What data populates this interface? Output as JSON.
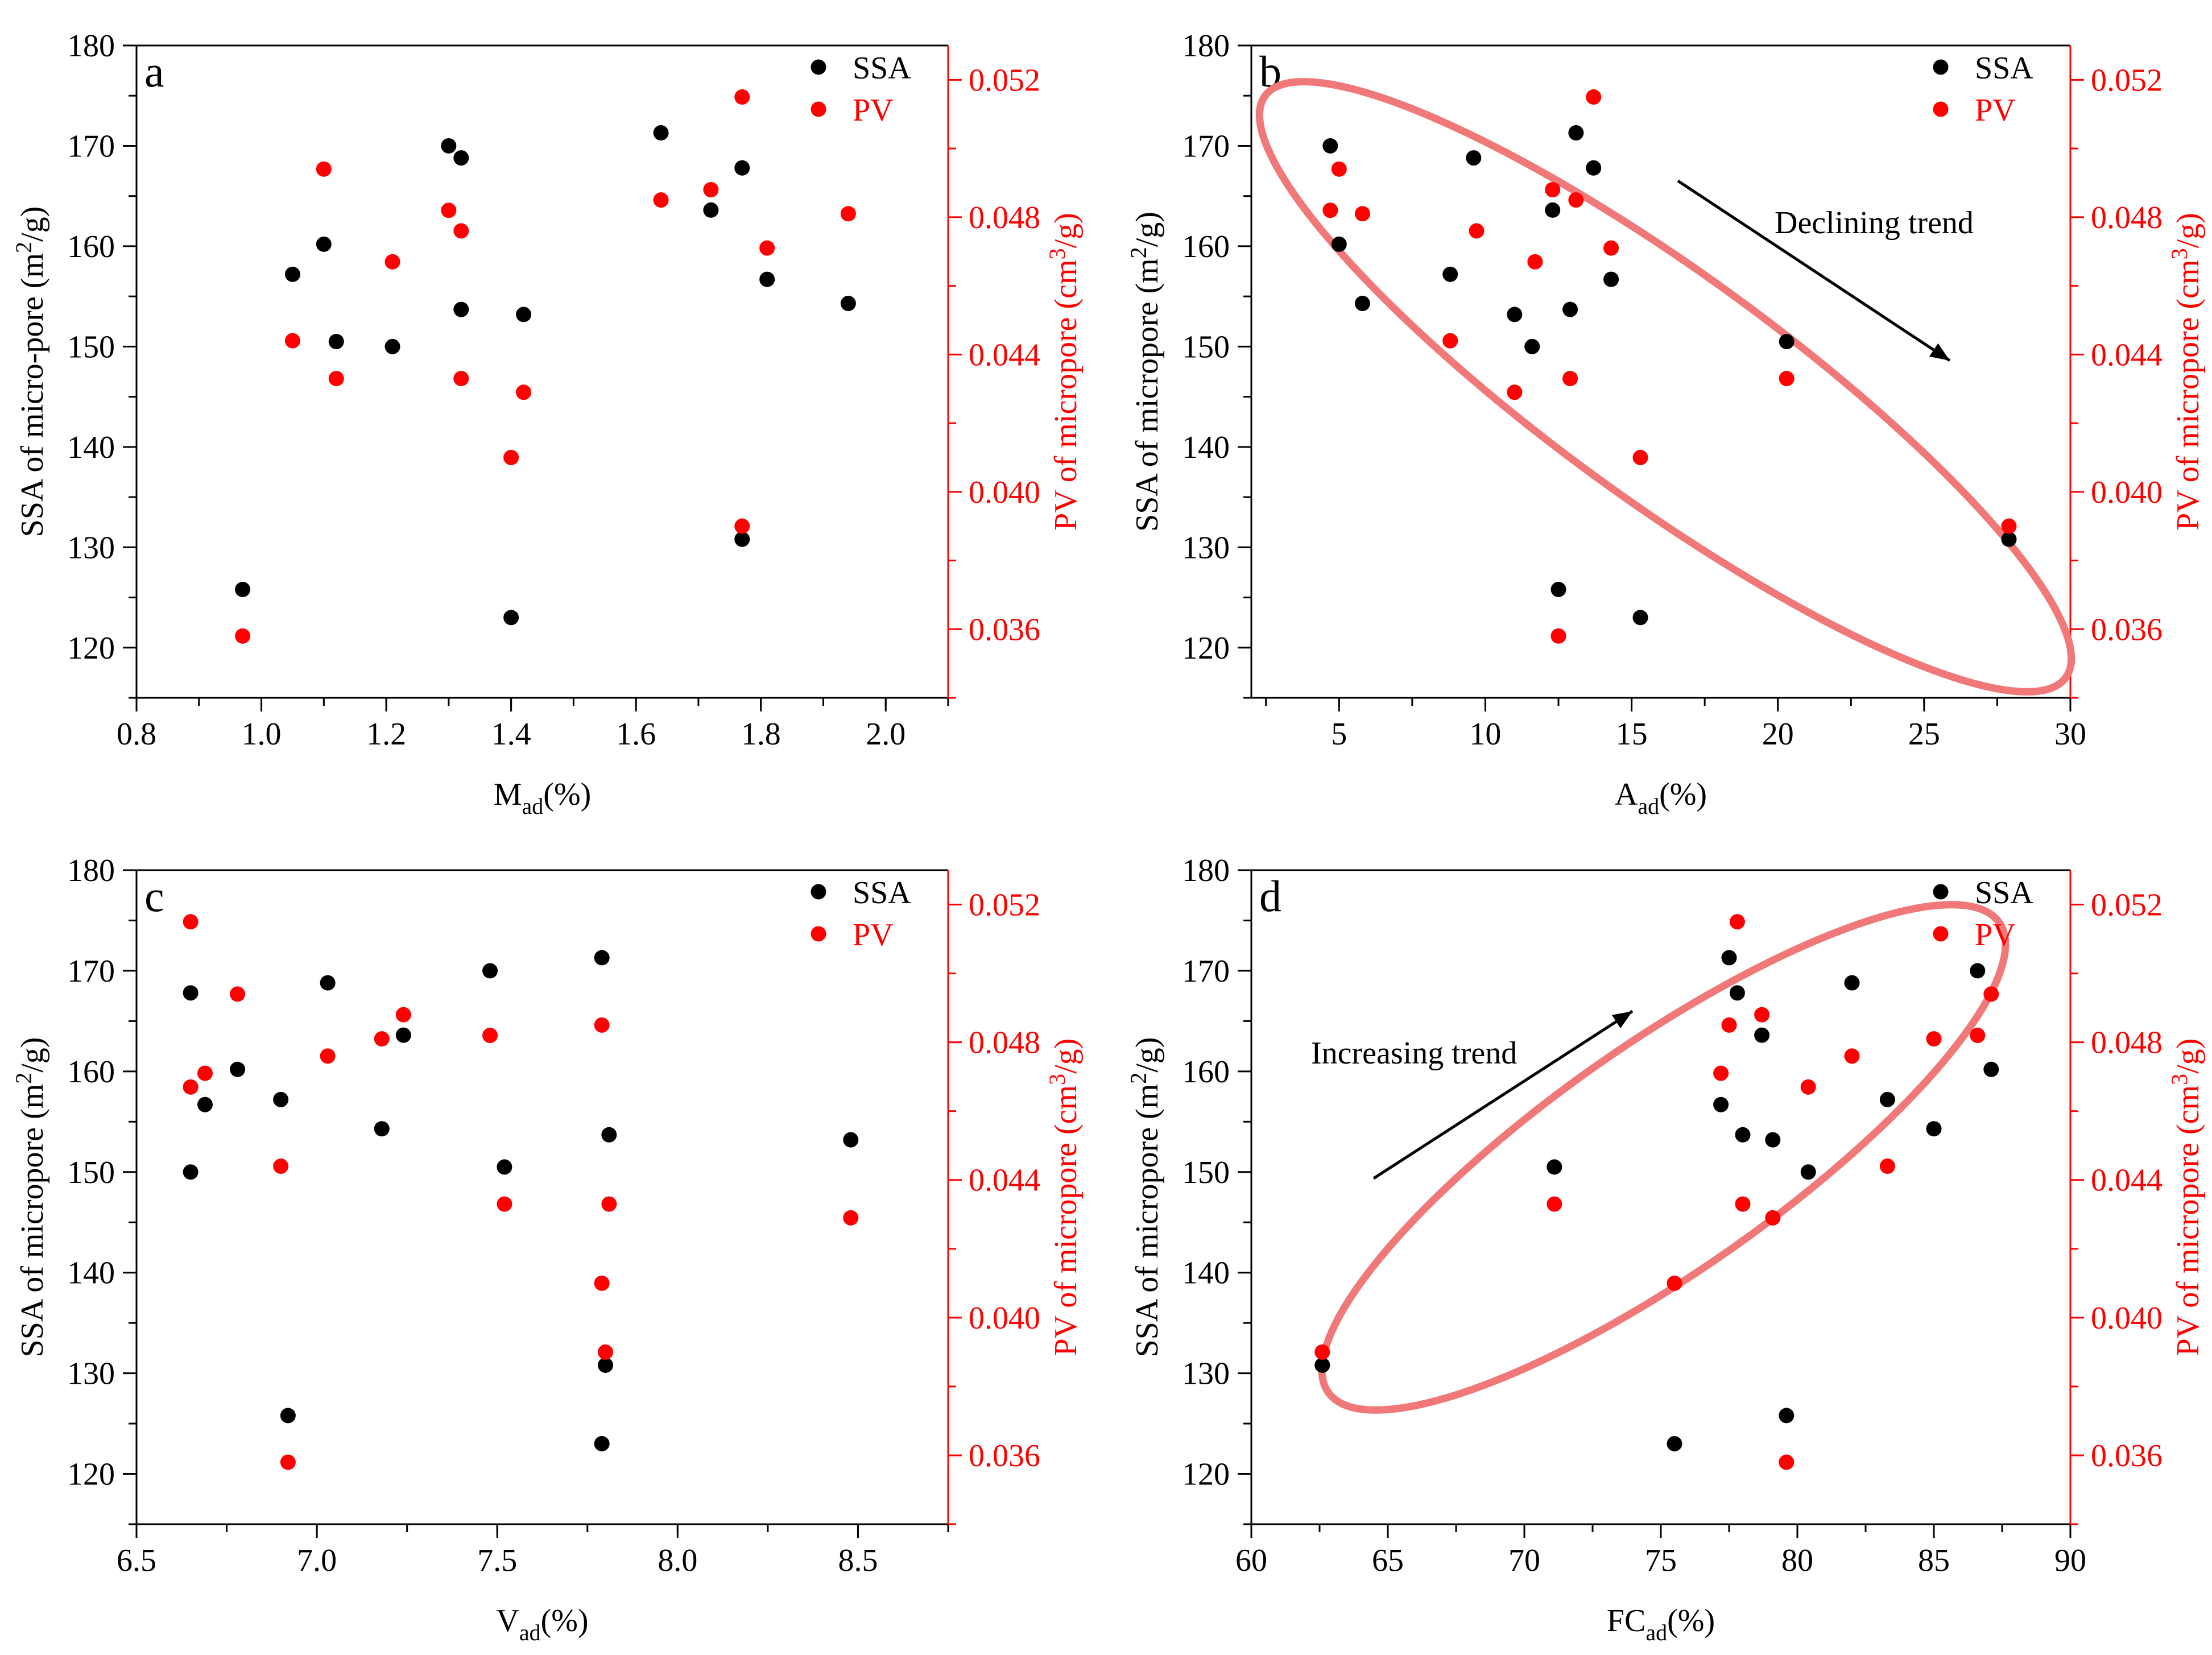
{
  "colors": {
    "ssa": "#000000",
    "pv": "#ff0000",
    "ellipse": "#f07878",
    "axis_left": "#000000",
    "axis_right": "#ff0000"
  },
  "chart_data": [
    {
      "panel_label": "a",
      "type": "scatter",
      "xlabel_main": "M",
      "xlabel_sub": "ad",
      "xlabel_tail": "(%)",
      "ylabel_left": "SSA of micro-pore (m",
      "ylabel_left_sup": "2",
      "ylabel_left_tail": "/g)",
      "ylabel_right": "PV of micropore (cm",
      "ylabel_right_sup": "3",
      "ylabel_right_tail": "/g)",
      "xlim": [
        0.8,
        2.1
      ],
      "ylim_left": [
        115,
        180
      ],
      "ylim_right": [
        0.034,
        0.053
      ],
      "xticks": [
        "0.8",
        "1.0",
        "1.2",
        "1.4",
        "1.6",
        "1.8",
        "2.0"
      ],
      "yticks_left": [
        "120",
        "130",
        "140",
        "150",
        "160",
        "170",
        "180"
      ],
      "yticks_right": [
        "0.036",
        "0.040",
        "0.044",
        "0.048",
        "0.052"
      ],
      "legend": [
        "SSA",
        "PV"
      ],
      "series": [
        {
          "name": "SSA",
          "axis": "left",
          "x": [
            0.97,
            1.05,
            1.1,
            1.12,
            1.21,
            1.3,
            1.32,
            1.32,
            1.4,
            1.42,
            1.64,
            1.72,
            1.77,
            1.77,
            1.81,
            1.94
          ],
          "y": [
            125.8,
            157.2,
            160.2,
            150.5,
            150.0,
            170.0,
            168.8,
            153.7,
            123.0,
            153.2,
            171.3,
            163.6,
            167.8,
            130.8,
            156.7,
            154.3
          ]
        },
        {
          "name": "PV",
          "axis": "right",
          "x": [
            0.97,
            1.05,
            1.1,
            1.12,
            1.21,
            1.3,
            1.32,
            1.32,
            1.4,
            1.42,
            1.64,
            1.72,
            1.77,
            1.77,
            1.81,
            1.94
          ],
          "y": [
            0.0358,
            0.0444,
            0.0494,
            0.0433,
            0.0467,
            0.0482,
            0.0476,
            0.0433,
            0.041,
            0.0429,
            0.0485,
            0.0488,
            0.0515,
            0.039,
            0.0471,
            0.0481
          ]
        }
      ]
    },
    {
      "panel_label": "b",
      "type": "scatter",
      "xlabel_main": "A",
      "xlabel_sub": "ad",
      "xlabel_tail": "(%)",
      "ylabel_left": "SSA of micropore (m",
      "ylabel_left_sup": "2",
      "ylabel_left_tail": "/g)",
      "ylabel_right": "PV of micropore (cm",
      "ylabel_right_sup": "3",
      "ylabel_right_tail": "/g)",
      "xlim": [
        2,
        30
      ],
      "ylim_left": [
        115,
        180
      ],
      "ylim_right": [
        0.034,
        0.053
      ],
      "xticks": [
        "5",
        "10",
        "15",
        "20",
        "25",
        "30"
      ],
      "yticks_left": [
        "120",
        "130",
        "140",
        "150",
        "160",
        "170",
        "180"
      ],
      "yticks_right": [
        "0.036",
        "0.040",
        "0.044",
        "0.048",
        "0.052"
      ],
      "legend": [
        "SSA",
        "PV"
      ],
      "annotation": "Declining trend",
      "series": [
        {
          "name": "SSA",
          "axis": "left",
          "x": [
            4.7,
            5.0,
            5.8,
            8.8,
            9.6,
            11.0,
            11.6,
            12.3,
            12.5,
            12.9,
            13.1,
            13.7,
            14.3,
            15.3,
            20.3,
            27.9
          ],
          "y": [
            170.0,
            160.2,
            154.3,
            157.2,
            168.8,
            153.2,
            150.0,
            163.6,
            125.8,
            153.7,
            171.3,
            167.8,
            156.7,
            123.0,
            150.5,
            130.8
          ]
        },
        {
          "name": "PV",
          "axis": "right",
          "x": [
            4.7,
            5.0,
            5.8,
            8.8,
            9.7,
            11.0,
            11.7,
            12.3,
            12.5,
            12.9,
            13.1,
            13.7,
            14.3,
            15.3,
            20.3,
            27.9
          ],
          "y": [
            0.0482,
            0.0494,
            0.0481,
            0.0444,
            0.0476,
            0.0429,
            0.0467,
            0.0488,
            0.0358,
            0.0433,
            0.0485,
            0.0515,
            0.0471,
            0.041,
            0.0433,
            0.039
          ]
        }
      ]
    },
    {
      "panel_label": "c",
      "type": "scatter",
      "xlabel_main": "V",
      "xlabel_sub": "ad",
      "xlabel_tail": "(%)",
      "ylabel_left": "SSA of micropore (m",
      "ylabel_left_sup": "2",
      "ylabel_left_tail": "/g)",
      "ylabel_right": "PV of micropore (cm",
      "ylabel_right_sup": "3",
      "ylabel_right_tail": "/g)",
      "xlim": [
        6.5,
        8.75
      ],
      "ylim_left": [
        115,
        180
      ],
      "ylim_right": [
        0.034,
        0.053
      ],
      "xticks": [
        "6.5",
        "7.0",
        "7.5",
        "8.0",
        "8.5"
      ],
      "yticks_left": [
        "120",
        "130",
        "140",
        "150",
        "160",
        "170",
        "180"
      ],
      "yticks_right": [
        "0.036",
        "0.040",
        "0.044",
        "0.048",
        "0.052"
      ],
      "legend": [
        "SSA",
        "PV"
      ],
      "series": [
        {
          "name": "SSA",
          "axis": "left",
          "x": [
            6.65,
            6.65,
            6.69,
            6.78,
            6.9,
            6.92,
            7.03,
            7.18,
            7.24,
            7.48,
            7.52,
            7.79,
            7.79,
            7.8,
            7.81,
            8.48
          ],
          "y": [
            167.8,
            150.0,
            156.7,
            160.2,
            157.2,
            125.8,
            168.8,
            154.3,
            163.6,
            170.0,
            150.5,
            171.3,
            123.0,
            130.8,
            153.7,
            153.2
          ]
        },
        {
          "name": "PV",
          "axis": "right",
          "x": [
            6.65,
            6.65,
            6.69,
            6.78,
            6.9,
            6.92,
            7.03,
            7.18,
            7.24,
            7.48,
            7.52,
            7.79,
            7.79,
            7.8,
            7.81,
            8.48
          ],
          "y": [
            0.0515,
            0.0467,
            0.0471,
            0.0494,
            0.0444,
            0.0358,
            0.0476,
            0.0481,
            0.0488,
            0.0482,
            0.0433,
            0.0485,
            0.041,
            0.039,
            0.0433,
            0.0429
          ]
        }
      ]
    },
    {
      "panel_label": "d",
      "type": "scatter",
      "xlabel_main": "FC",
      "xlabel_sub": "ad",
      "xlabel_tail": "(%)",
      "ylabel_left": "SSA of micropore (m",
      "ylabel_left_sup": "2",
      "ylabel_left_tail": "/g)",
      "ylabel_right": "PV of micropore (cm",
      "ylabel_right_sup": "3",
      "ylabel_right_tail": "/g)",
      "xlim": [
        60,
        90
      ],
      "ylim_left": [
        115,
        180
      ],
      "ylim_right": [
        0.034,
        0.053
      ],
      "xticks": [
        "60",
        "65",
        "70",
        "75",
        "80",
        "85",
        "90"
      ],
      "yticks_left": [
        "120",
        "130",
        "140",
        "150",
        "160",
        "170",
        "180"
      ],
      "yticks_right": [
        "0.036",
        "0.040",
        "0.044",
        "0.048",
        "0.052"
      ],
      "legend": [
        "SSA",
        "PV"
      ],
      "annotation": "Increasing trend",
      "series": [
        {
          "name": "SSA",
          "axis": "left",
          "x": [
            62.6,
            71.1,
            75.5,
            77.2,
            77.5,
            77.8,
            78.0,
            78.7,
            79.1,
            79.6,
            80.4,
            82.0,
            83.3,
            85.0,
            86.6,
            87.1
          ],
          "y": [
            130.8,
            150.5,
            123.0,
            156.7,
            171.3,
            167.8,
            153.7,
            163.6,
            153.2,
            125.8,
            150.0,
            168.8,
            157.2,
            154.3,
            170.0,
            160.2
          ]
        },
        {
          "name": "PV",
          "axis": "right",
          "x": [
            62.6,
            71.1,
            75.5,
            77.2,
            77.5,
            77.8,
            78.0,
            78.7,
            79.1,
            79.6,
            80.4,
            82.0,
            83.3,
            85.0,
            86.6,
            87.1
          ],
          "y": [
            0.039,
            0.0433,
            0.041,
            0.0471,
            0.0485,
            0.0515,
            0.0433,
            0.0488,
            0.0429,
            0.0358,
            0.0467,
            0.0476,
            0.0444,
            0.0481,
            0.0482,
            0.0494
          ]
        }
      ]
    }
  ]
}
